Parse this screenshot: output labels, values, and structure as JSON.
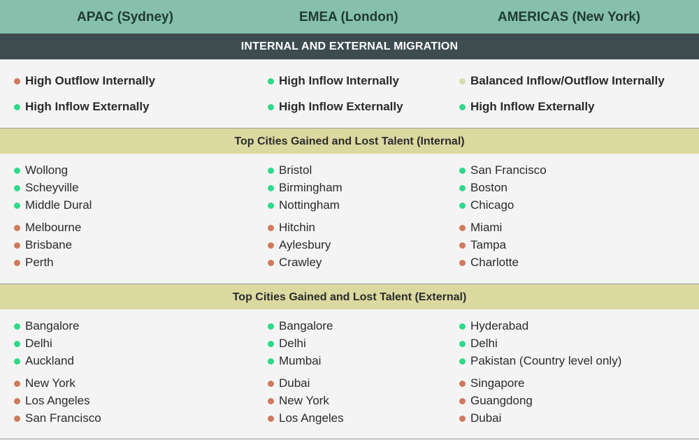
{
  "colors": {
    "inflow": "#2fd98a",
    "outflow": "#cf7a5b",
    "balanced": "#d8dca8"
  },
  "header": {
    "apac": "APAC (Sydney)",
    "emea": "EMEA (London)",
    "americas": "AMERICAS (New York)"
  },
  "migration": {
    "title": "INTERNAL AND EXTERNAL MIGRATION",
    "apac": [
      {
        "label": "High Outflow Internally",
        "status": "outflow"
      },
      {
        "label": "High Inflow Externally",
        "status": "inflow"
      }
    ],
    "emea": [
      {
        "label": "High Inflow Internally",
        "status": "inflow"
      },
      {
        "label": "High Inflow Externally",
        "status": "inflow"
      }
    ],
    "americas": [
      {
        "label": "Balanced Inflow/Outflow Internally",
        "status": "balanced"
      },
      {
        "label": "High Inflow Externally",
        "status": "inflow"
      }
    ]
  },
  "internal": {
    "title": "Top Cities Gained and Lost Talent (Internal)",
    "apac": {
      "gained": [
        "Wollong",
        "Scheyville",
        "Middle Dural"
      ],
      "lost": [
        "Melbourne",
        "Brisbane",
        "Perth"
      ]
    },
    "emea": {
      "gained": [
        "Bristol",
        "Birmingham",
        "Nottingham"
      ],
      "lost": [
        "Hitchin",
        "Aylesbury",
        "Crawley"
      ]
    },
    "americas": {
      "gained": [
        "San Francisco",
        "Boston",
        "Chicago"
      ],
      "lost": [
        "Miami",
        "Tampa",
        "Charlotte"
      ]
    }
  },
  "external": {
    "title": "Top Cities Gained and Lost Talent (External)",
    "apac": {
      "gained": [
        "Bangalore",
        "Delhi",
        "Auckland"
      ],
      "lost": [
        "New York",
        "Los Angeles",
        "San Francisco"
      ]
    },
    "emea": {
      "gained": [
        "Bangalore",
        "Delhi",
        "Mumbai"
      ],
      "lost": [
        "Dubai",
        "New York",
        "Los Angeles"
      ]
    },
    "americas": {
      "gained": [
        "Hyderabad",
        "Delhi",
        "Pakistan (Country level only)"
      ],
      "lost": [
        "Singapore",
        "Guangdong",
        "Dubai"
      ]
    }
  }
}
